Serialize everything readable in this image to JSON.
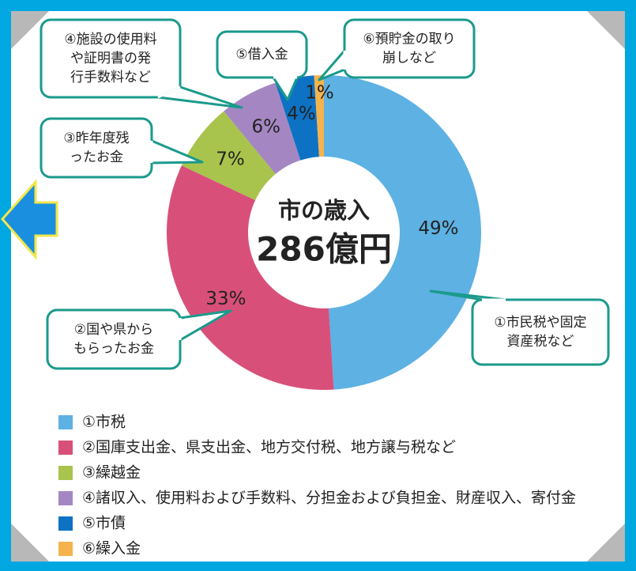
{
  "chart_data": {
    "type": "pie",
    "center_title": "市の歳入",
    "center_value": "286億円",
    "categories": [
      "①市税",
      "②国庫支出金、県支出金、地方交付税、地方譲与税など",
      "③繰越金",
      "④諸収入、使用料および手数料、分担金および負担金、財産収入、寄付金",
      "⑤市債",
      "⑥繰入金"
    ],
    "values": [
      49,
      33,
      7,
      6,
      4,
      1
    ],
    "value_labels": [
      "49%",
      "33%",
      "7%",
      "6%",
      "4%",
      "1%"
    ],
    "colors": [
      "#5eb1e3",
      "#d8507a",
      "#a8c44c",
      "#a487c2",
      "#0d72c4",
      "#f5b34c"
    ],
    "annotations": [
      [
        "①市民税や固定",
        "資産税など"
      ],
      [
        "②国や県から",
        "もらったお金"
      ],
      [
        "③昨年度残",
        "ったお金"
      ],
      [
        "④施設の使用料",
        "や証明書の発",
        "行手数料など"
      ],
      [
        "⑤借入金"
      ],
      [
        "⑥預貯金の取り",
        "崩しなど"
      ]
    ]
  }
}
